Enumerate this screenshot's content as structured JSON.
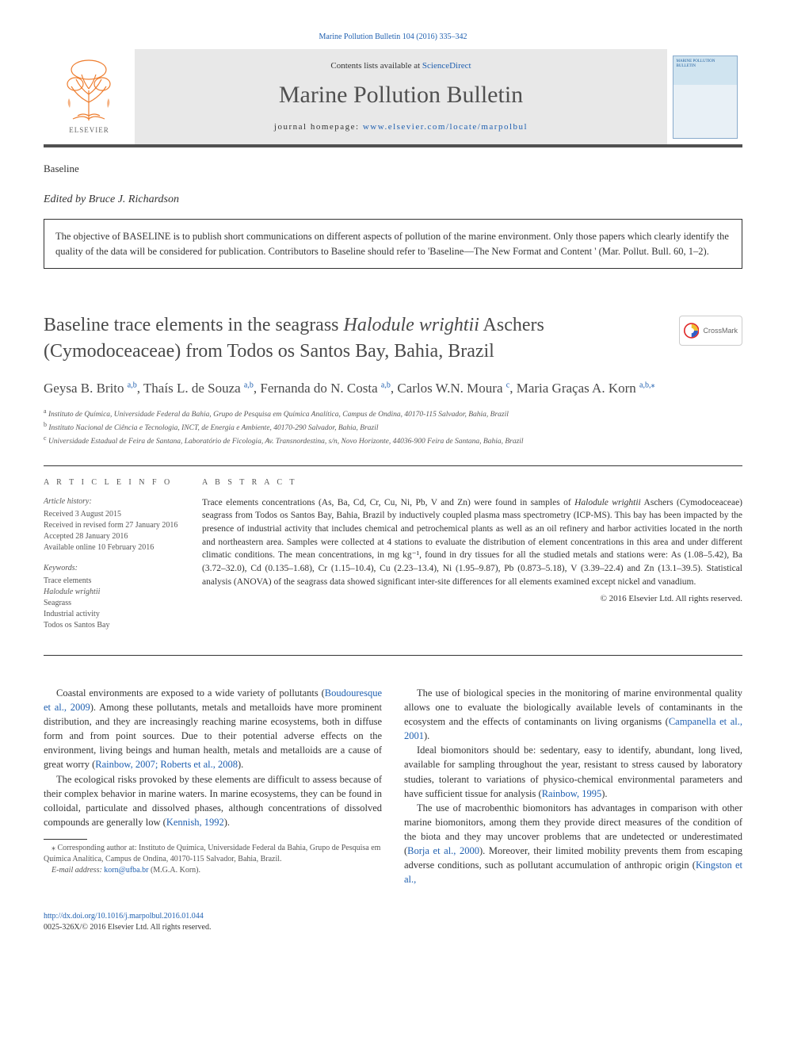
{
  "colors": {
    "link": "#2060b0",
    "text": "#333333",
    "muted": "#555555",
    "heading": "#4a4a4a",
    "band_bg": "#e8e8e8",
    "band_border": "#505050",
    "elsevier_orange": "#ee7d2e",
    "crossmark_red": "#e02828",
    "crossmark_yellow": "#f0c030",
    "crossmark_blue": "#3060c8"
  },
  "top_link": "Marine Pollution Bulletin 104 (2016) 335–342",
  "header": {
    "contents_prefix": "Contents lists available at ",
    "contents_link": "ScienceDirect",
    "journal_name": "Marine Pollution Bulletin",
    "homepage_prefix": "journal homepage: ",
    "homepage_link": "www.elsevier.com/locate/marpolbul",
    "elsevier_label": "ELSEVIER",
    "cover_title": "MARINE POLLUTION BULLETIN"
  },
  "section_label": "Baseline",
  "editor_prefix": "Edited by ",
  "editor_name": "Bruce J. Richardson",
  "baseline_box": "The objective of BASELINE is to publish short communications on different aspects of pollution of the marine environment. Only those papers which clearly identify the quality of the data will be considered for publication. Contributors to Baseline should refer to 'Baseline—The New Format and Content ' (Mar. Pollut. Bull. 60, 1–2).",
  "title_pre": "Baseline trace elements in the seagrass ",
  "title_italic": "Halodule wrightii",
  "title_post": " Aschers (Cymodoceaceae) from Todos os Santos Bay, Bahia, Brazil",
  "crossmark_label": "CrossMark",
  "authors": [
    {
      "name": "Geysa B. Brito ",
      "sup": "a,b"
    },
    {
      "name": ", Thaís L. de Souza ",
      "sup": "a,b"
    },
    {
      "name": ", Fernanda do N. Costa ",
      "sup": "a,b"
    },
    {
      "name": ", Carlos W.N. Moura ",
      "sup": "c"
    },
    {
      "name": ", Maria Graças A. Korn ",
      "sup": "a,b,",
      "star": "⁎"
    }
  ],
  "affiliations": [
    {
      "sup": "a",
      "text": " Instituto de Química, Universidade Federal da Bahia, Grupo de Pesquisa em Química Analítica, Campus de Ondina, 40170-115 Salvador, Bahia, Brazil"
    },
    {
      "sup": "b",
      "text": " Instituto Nacional de Ciência e Tecnologia, INCT, de Energia e Ambiente, 40170-290 Salvador, Bahia, Brazil"
    },
    {
      "sup": "c",
      "text": " Universidade Estadual de Feira de Santana, Laboratório de Ficologia, Av. Transnordestina, s/n, Novo Horizonte, 44036-900 Feira de Santana, Bahia, Brazil"
    }
  ],
  "info": {
    "heading": "A R T I C L E   I N F O",
    "history_label": "Article history:",
    "history": [
      "Received 3 August 2015",
      "Received in revised form 27 January 2016",
      "Accepted 28 January 2016",
      "Available online 10 February 2016"
    ],
    "keywords_label": "Keywords:",
    "keywords": [
      "Trace elements",
      "Halodule wrightii",
      "Seagrass",
      "Industrial activity",
      "Todos os Santos Bay"
    ]
  },
  "abstract": {
    "heading": "A B S T R A C T",
    "p1a": "Trace elements concentrations (As, Ba, Cd, Cr, Cu, Ni, Pb, V and Zn) were found in samples of ",
    "p1i1": "Halodule wrightii",
    "p1b": " Aschers (Cymodoceaceae) seagrass from Todos os Santos Bay, Bahia, Brazil by inductively coupled plasma mass spectrometry (ICP-MS). This bay has been impacted by the presence of industrial activity that includes chemical and petrochemical plants as well as an oil refinery and harbor activities located in the north and northeastern area. Samples were collected at 4 stations to evaluate the distribution of element concentrations in this area and under different climatic conditions. The mean concentrations, in mg kg⁻¹, found in dry tissues for all the studied metals and stations were: As (1.08–5.42), Ba (3.72–32.0), Cd (0.135–1.68), Cr (1.15–10.4), Cu (2.23–13.4), Ni (1.95–9.87), Pb (0.873–5.18), V (3.39–22.4) and Zn (13.1–39.5). Statistical analysis (ANOVA) of the seagrass data showed significant inter-site differences for all elements examined except nickel and vanadium.",
    "copyright": "© 2016 Elsevier Ltd. All rights reserved."
  },
  "body": {
    "left": [
      {
        "pre": "Coastal environments are exposed to a wide variety of pollutants (",
        "link": "Boudouresque et al., 2009",
        "post": "). Among these pollutants, metals and metalloids have more prominent distribution, and they are increasingly reaching marine ecosystems, both in diffuse form and from point sources. Due to their potential adverse effects on the environment, living beings and human health, metals and metalloids are a cause of great worry (",
        "link2": "Rainbow, 2007; Roberts et al., 2008",
        "post2": ")."
      },
      {
        "pre": "The ecological risks provoked by these elements are difficult to assess because of their complex behavior in marine waters. In marine ecosystems, they can be found in colloidal, particulate and dissolved phases, although concentrations of dissolved compounds are generally low (",
        "link": "Kennish, 1992",
        "post": ")."
      }
    ],
    "right": [
      {
        "pre": "The use of biological species in the monitoring of marine environmental quality allows one to evaluate the biologically available levels of contaminants in the ecosystem and the effects of contaminants on living organisms (",
        "link": "Campanella et al., 2001",
        "post": ")."
      },
      {
        "pre": "Ideal biomonitors should be: sedentary, easy to identify, abundant, long lived, available for sampling throughout the year, resistant to stress caused by laboratory studies, tolerant to variations of physico-chemical environmental parameters and have sufficient tissue for analysis (",
        "link": "Rainbow, 1995",
        "post": ")."
      },
      {
        "pre": "The use of macrobenthic biomonitors has advantages in comparison with other marine biomonitors, among them they provide direct measures of the condition of the biota and they may uncover problems that are undetected or underestimated (",
        "link": "Borja et al., 2000",
        "post": "). Moreover, their limited mobility prevents them from escaping adverse conditions, such as pollutant accumulation of anthropic origin (",
        "link2": "Kingston et al.,",
        "post2": ""
      }
    ]
  },
  "corresponding": {
    "star": "⁎",
    "text": " Corresponding author at: Instituto de Química, Universidade Federal da Bahia, Grupo de Pesquisa em Química Analítica, Campus de Ondina, 40170-115 Salvador, Bahia, Brazil.",
    "email_label": "E-mail address: ",
    "email": "korn@ufba.br",
    "email_post": " (M.G.A. Korn)."
  },
  "footer": {
    "doi": "http://dx.doi.org/10.1016/j.marpolbul.2016.01.044",
    "issn": "0025-326X/© 2016 Elsevier Ltd. All rights reserved."
  }
}
